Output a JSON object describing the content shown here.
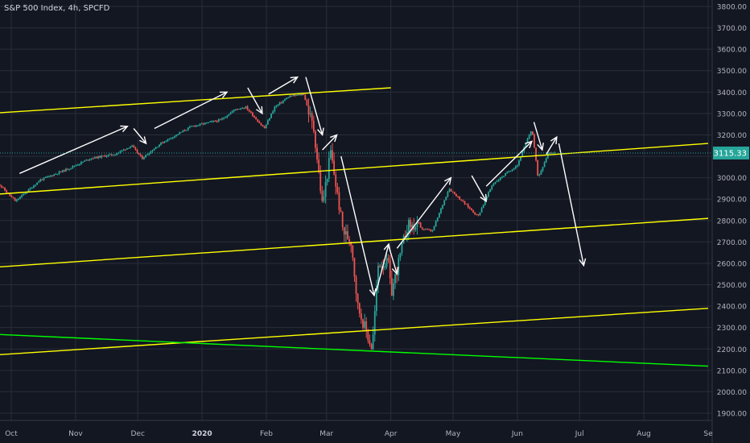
{
  "chart_data": {
    "type": "candlestick",
    "title": "S&P 500 Index, 4h, SPCFD",
    "last_price": 3115.33,
    "last_price_label": "3115.33",
    "ylim": [
      1850,
      3850
    ],
    "y_ticks": [
      "3800.00",
      "3700.00",
      "3600.00",
      "3500.00",
      "3400.00",
      "3300.00",
      "3200.00",
      "3100.00",
      "3000.00",
      "2900.00",
      "2800.00",
      "2700.00",
      "2600.00",
      "2500.00",
      "2400.00",
      "2300.00",
      "2200.00",
      "2100.00",
      "2000.00",
      "1900.00"
    ],
    "x_ticks": [
      {
        "label": "Oct",
        "date": "2019-10-01",
        "bold": false
      },
      {
        "label": "Nov",
        "date": "2019-11-01",
        "bold": false
      },
      {
        "label": "Dec",
        "date": "2019-12-01",
        "bold": false
      },
      {
        "label": "2020",
        "date": "2020-01-01",
        "bold": true
      },
      {
        "label": "Feb",
        "date": "2020-02-01",
        "bold": false
      },
      {
        "label": "Mar",
        "date": "2020-03-01",
        "bold": false
      },
      {
        "label": "Apr",
        "date": "2020-04-01",
        "bold": false
      },
      {
        "label": "May",
        "date": "2020-05-01",
        "bold": false
      },
      {
        "label": "Jun",
        "date": "2020-06-01",
        "bold": false
      },
      {
        "label": "Jul",
        "date": "2020-07-01",
        "bold": false
      },
      {
        "label": "Aug",
        "date": "2020-08-01",
        "bold": false
      },
      {
        "label": "Se",
        "date": "2020-09-01",
        "bold": false
      }
    ],
    "price_path": [
      [
        "2019-09-23",
        2990
      ],
      [
        "2019-10-03",
        2890
      ],
      [
        "2019-10-15",
        2990
      ],
      [
        "2019-10-28",
        3040
      ],
      [
        "2019-11-08",
        3090
      ],
      [
        "2019-11-20",
        3110
      ],
      [
        "2019-11-28",
        3150
      ],
      [
        "2019-12-03",
        3090
      ],
      [
        "2019-12-12",
        3160
      ],
      [
        "2019-12-27",
        3240
      ],
      [
        "2020-01-10",
        3270
      ],
      [
        "2020-01-17",
        3320
      ],
      [
        "2020-01-22",
        3330
      ],
      [
        "2020-01-31",
        3230
      ],
      [
        "2020-02-05",
        3330
      ],
      [
        "2020-02-12",
        3380
      ],
      [
        "2020-02-19",
        3390
      ],
      [
        "2020-02-24",
        3220
      ],
      [
        "2020-02-28",
        2870
      ],
      [
        "2020-03-03",
        3120
      ],
      [
        "2020-03-09",
        2750
      ],
      [
        "2020-03-13",
        2700
      ],
      [
        "2020-03-16",
        2400
      ],
      [
        "2020-03-23",
        2200
      ],
      [
        "2020-03-26",
        2600
      ],
      [
        "2020-03-31",
        2600
      ],
      [
        "2020-04-01",
        2450
      ],
      [
        "2020-04-09",
        2780
      ],
      [
        "2020-04-21",
        2750
      ],
      [
        "2020-04-29",
        2950
      ],
      [
        "2020-05-13",
        2820
      ],
      [
        "2020-05-20",
        2970
      ],
      [
        "2020-06-01",
        3060
      ],
      [
        "2020-06-08",
        3230
      ],
      [
        "2020-06-11",
        3000
      ],
      [
        "2020-06-16",
        3120
      ],
      [
        "2020-06-19",
        3115
      ]
    ],
    "trend_lines": [
      {
        "color": "#ffff00",
        "x1": "2019-09-20",
        "y1": 3300,
        "x2": "2020-04-01",
        "y2": 3420
      },
      {
        "color": "#ffff00",
        "x1": "2019-09-20",
        "y1": 2920,
        "x2": "2020-09-01",
        "y2": 3160
      },
      {
        "color": "#ffff00",
        "x1": "2019-09-20",
        "y1": 2580,
        "x2": "2020-09-01",
        "y2": 2810
      },
      {
        "color": "#ffff00",
        "x1": "2019-09-20",
        "y1": 2170,
        "x2": "2020-09-01",
        "y2": 2390
      },
      {
        "color": "#00ff00",
        "x1": "2019-09-20",
        "y1": 2270,
        "x2": "2020-09-01",
        "y2": 2120
      }
    ],
    "annotation_arrows": [
      {
        "x1": "2019-10-05",
        "y1": 3020,
        "x2": "2019-11-26",
        "y2": 3240
      },
      {
        "x1": "2019-11-29",
        "y1": 3230,
        "x2": "2019-12-05",
        "y2": 3160
      },
      {
        "x1": "2019-12-09",
        "y1": 3230,
        "x2": "2020-01-13",
        "y2": 3400
      },
      {
        "x1": "2020-01-23",
        "y1": 3420,
        "x2": "2020-01-30",
        "y2": 3300
      },
      {
        "x1": "2020-02-02",
        "y1": 3390,
        "x2": "2020-02-16",
        "y2": 3470
      },
      {
        "x1": "2020-02-20",
        "y1": 3470,
        "x2": "2020-02-28",
        "y2": 3200
      },
      {
        "x1": "2020-02-28",
        "y1": 3130,
        "x2": "2020-03-06",
        "y2": 3200
      },
      {
        "x1": "2020-03-08",
        "y1": 3100,
        "x2": "2020-03-24",
        "y2": 2450
      },
      {
        "x1": "2020-03-25",
        "y1": 2470,
        "x2": "2020-03-31",
        "y2": 2690
      },
      {
        "x1": "2020-03-31",
        "y1": 2680,
        "x2": "2020-04-04",
        "y2": 2550
      },
      {
        "x1": "2020-04-04",
        "y1": 2670,
        "x2": "2020-04-30",
        "y2": 3000
      },
      {
        "x1": "2020-05-10",
        "y1": 3010,
        "x2": "2020-05-17",
        "y2": 2890
      },
      {
        "x1": "2020-05-17",
        "y1": 2960,
        "x2": "2020-06-08",
        "y2": 3170
      },
      {
        "x1": "2020-06-09",
        "y1": 3260,
        "x2": "2020-06-13",
        "y2": 3130
      },
      {
        "x1": "2020-06-15",
        "y1": 3110,
        "x2": "2020-06-20",
        "y2": 3190
      },
      {
        "x1": "2020-06-21",
        "y1": 3160,
        "x2": "2020-07-03",
        "y2": 2590
      }
    ],
    "colors": {
      "background": "#131722",
      "grid": "#2a2e39",
      "up": "#26a69a",
      "down": "#ef5350",
      "axis_text": "#b2b5be",
      "price_label_bg": "#26a69a",
      "arrow": "#ffffff"
    }
  }
}
